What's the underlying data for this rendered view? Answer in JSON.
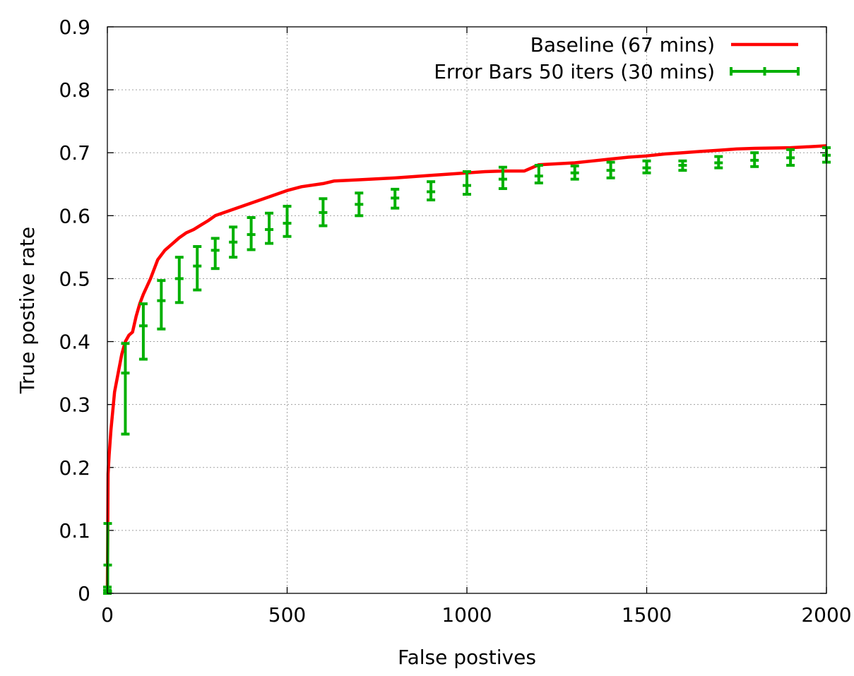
{
  "chart_data": {
    "type": "line",
    "title": "",
    "xlabel": "False postives",
    "ylabel": "True postive rate",
    "xlim": [
      0,
      2000
    ],
    "ylim": [
      0,
      0.9
    ],
    "x_ticks": [
      "0",
      "500",
      "1000",
      "1500",
      "2000"
    ],
    "y_ticks": [
      "0",
      "0.1",
      "0.2",
      "0.3",
      "0.4",
      "0.5",
      "0.6",
      "0.7",
      "0.8",
      "0.9"
    ],
    "grid": true,
    "legend_position": "top-right",
    "series": [
      {
        "name": "Baseline (67 mins)",
        "style": "line",
        "color": "#ff0000",
        "x": [
          0,
          2,
          5,
          10,
          20,
          30,
          40,
          50,
          60,
          70,
          80,
          90,
          100,
          120,
          140,
          160,
          180,
          200,
          220,
          240,
          260,
          280,
          300,
          350,
          400,
          450,
          500,
          540,
          600,
          630,
          700,
          800,
          900,
          950,
          1000,
          1050,
          1100,
          1160,
          1200,
          1300,
          1350,
          1400,
          1450,
          1500,
          1550,
          1600,
          1650,
          1700,
          1750,
          1800,
          1900,
          2000
        ],
        "y": [
          0,
          0.19,
          0.22,
          0.26,
          0.32,
          0.35,
          0.38,
          0.4,
          0.41,
          0.415,
          0.44,
          0.46,
          0.475,
          0.5,
          0.53,
          0.545,
          0.555,
          0.565,
          0.573,
          0.578,
          0.585,
          0.592,
          0.6,
          0.61,
          0.62,
          0.63,
          0.64,
          0.646,
          0.651,
          0.655,
          0.657,
          0.66,
          0.664,
          0.666,
          0.668,
          0.67,
          0.671,
          0.671,
          0.681,
          0.684,
          0.687,
          0.69,
          0.693,
          0.695,
          0.698,
          0.7,
          0.702,
          0.704,
          0.706,
          0.707,
          0.708,
          0.711
        ]
      },
      {
        "name": "Error Bars 50 iters (30 mins)",
        "style": "errorbars",
        "color": "#00b000",
        "x": [
          0,
          1,
          50,
          100,
          150,
          200,
          250,
          300,
          350,
          400,
          450,
          500,
          600,
          700,
          800,
          900,
          1000,
          1100,
          1200,
          1300,
          1400,
          1500,
          1600,
          1700,
          1800,
          1900,
          2000
        ],
        "y": [
          0.005,
          0.045,
          0.35,
          0.425,
          0.465,
          0.5,
          0.52,
          0.545,
          0.558,
          0.57,
          0.578,
          0.588,
          0.605,
          0.618,
          0.628,
          0.638,
          0.648,
          0.658,
          0.663,
          0.668,
          0.672,
          0.676,
          0.68,
          0.684,
          0.688,
          0.692,
          0.696
        ],
        "ylow": [
          0,
          0.003,
          0.253,
          0.372,
          0.42,
          0.462,
          0.482,
          0.516,
          0.534,
          0.546,
          0.556,
          0.567,
          0.584,
          0.6,
          0.612,
          0.625,
          0.634,
          0.643,
          0.652,
          0.658,
          0.66,
          0.668,
          0.672,
          0.676,
          0.678,
          0.68,
          0.685
        ],
        "yhigh": [
          0.01,
          0.111,
          0.397,
          0.46,
          0.497,
          0.534,
          0.551,
          0.564,
          0.582,
          0.597,
          0.604,
          0.615,
          0.627,
          0.636,
          0.642,
          0.654,
          0.67,
          0.677,
          0.68,
          0.679,
          0.685,
          0.687,
          0.687,
          0.694,
          0.7,
          0.705,
          0.708
        ]
      }
    ]
  }
}
